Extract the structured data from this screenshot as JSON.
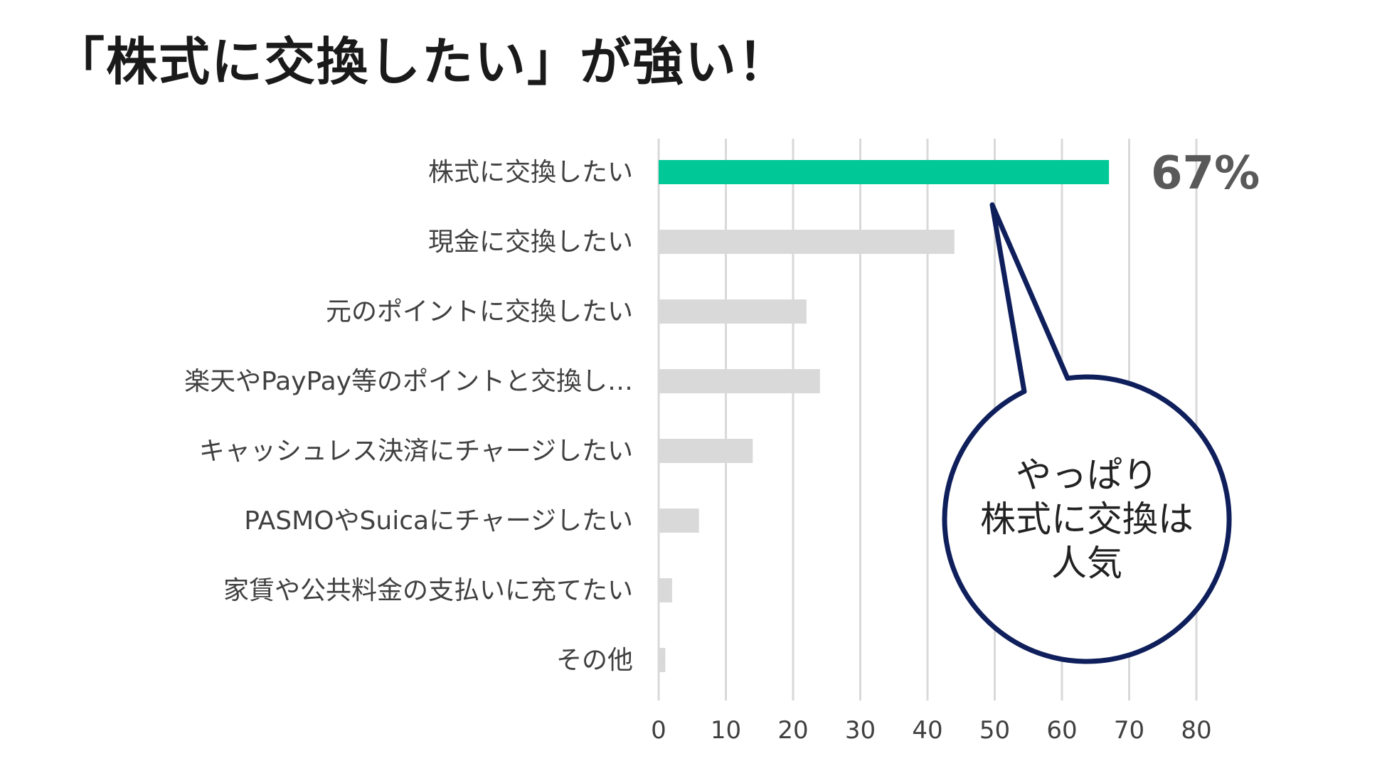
{
  "headline": "「株式に交換したい」が強い！",
  "chart_data": {
    "type": "bar",
    "orientation": "horizontal",
    "categories": [
      "株式に交換したい",
      "現金に交換したい",
      "元のポイントに交換したい",
      "楽天やPayPay等のポイントと交換し…",
      "キャッシュレス決済にチャージしたい",
      "PASMOやSuicaにチャージしたい",
      "家賃や公共料金の支払いに充てたい",
      "その他"
    ],
    "values": [
      67,
      44,
      22,
      24,
      14,
      6,
      2,
      1
    ],
    "highlight_index": 0,
    "highlight_label": "67%",
    "x_ticks": [
      "0",
      "10",
      "20",
      "30",
      "40",
      "50",
      "60",
      "70",
      "80"
    ],
    "xlim": [
      0,
      80
    ],
    "grid": true,
    "colors": {
      "highlight": "#00c896",
      "bar": "#d9d9d9",
      "grid": "#d9d9d9",
      "callout_border": "#0f1f5c"
    },
    "callout": {
      "lines": [
        "やっぱり",
        "株式に交換は",
        "人気"
      ]
    }
  }
}
